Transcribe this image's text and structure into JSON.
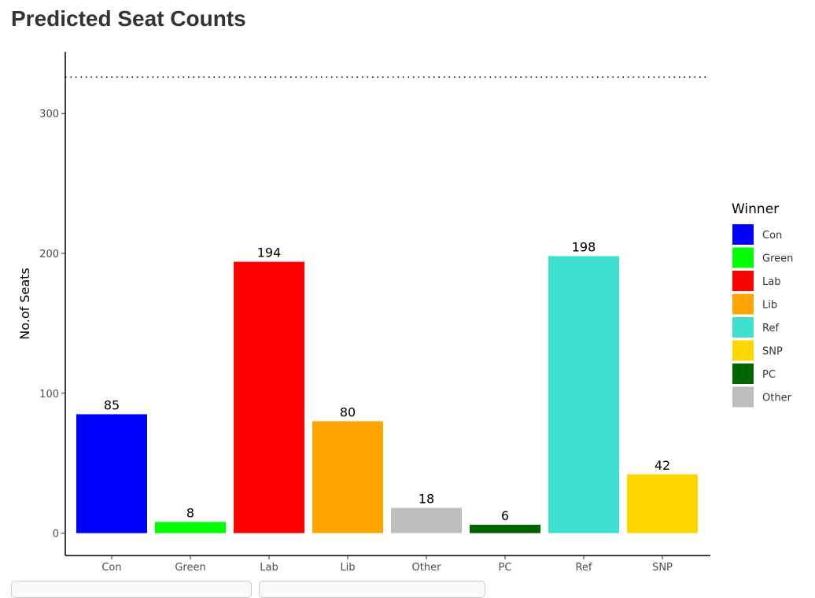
{
  "page_title": "Predicted Seat Counts",
  "chart_data": {
    "type": "bar",
    "title": "Predicted Seat Counts",
    "xlabel": "",
    "ylabel": "No.of Seats",
    "ylim": [
      -16,
      344
    ],
    "yticks": [
      0,
      100,
      200,
      300
    ],
    "categories": [
      "Con",
      "Green",
      "Lab",
      "Lib",
      "Other",
      "PC",
      "Ref",
      "SNP"
    ],
    "values": [
      85,
      8,
      194,
      80,
      18,
      6,
      198,
      42
    ],
    "colors": [
      "#0000FF",
      "#00FF00",
      "#FF0000",
      "#FFA500",
      "#BEBEBE",
      "#006400",
      "#40E0D0",
      "#FFD700"
    ],
    "reference_line": {
      "y": 326,
      "style": "dotted"
    },
    "legend": {
      "title": "Winner",
      "placement": "right",
      "entries": [
        {
          "label": "Con",
          "color": "#0000FF"
        },
        {
          "label": "Green",
          "color": "#00FF00"
        },
        {
          "label": "Lab",
          "color": "#FF0000"
        },
        {
          "label": "Lib",
          "color": "#FFA500"
        },
        {
          "label": "Ref",
          "color": "#40E0D0"
        },
        {
          "label": "SNP",
          "color": "#FFD700"
        },
        {
          "label": "PC",
          "color": "#006400"
        },
        {
          "label": "Other",
          "color": "#BEBEBE"
        }
      ]
    }
  }
}
